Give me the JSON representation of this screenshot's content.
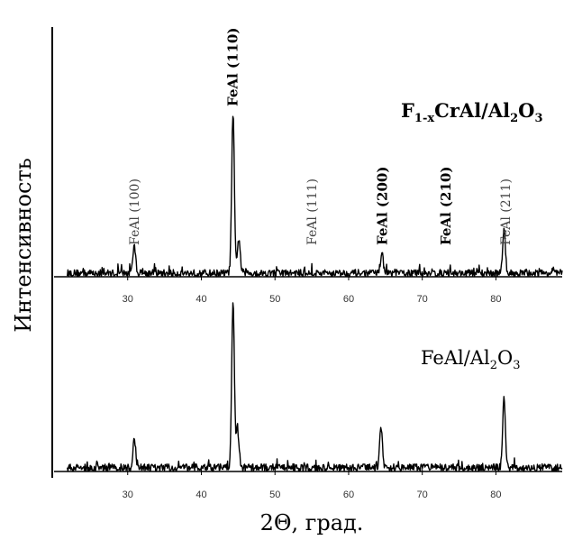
{
  "chart_data": [
    {
      "type": "line",
      "series_label_parts": {
        "main": "F",
        "sub1": "1-x",
        "mid": "CrAl/Al",
        "sub2": "2",
        "tail": "O",
        "sub3": "3"
      },
      "ylabel": "Интенсивность",
      "xlabel": "2Θ, град.",
      "xlim": [
        20,
        89
      ],
      "x_ticks": [
        30,
        40,
        50,
        60,
        70,
        80
      ],
      "peaks": [
        {
          "x": 30.9,
          "intensity": 0.17
        },
        {
          "x": 44.3,
          "intensity": 1.0
        },
        {
          "x": 45.1,
          "intensity": 0.22
        },
        {
          "x": 64.5,
          "intensity": 0.13
        },
        {
          "x": 81.1,
          "intensity": 0.26
        }
      ],
      "peak_labels": [
        {
          "text": "FeAl (100)",
          "x": 30.9,
          "bold": false
        },
        {
          "text": "FeAl (110)",
          "x": 44.3,
          "bold": true
        },
        {
          "text": "FeAl (111)",
          "x": 55.0,
          "bold": false
        },
        {
          "text": "FeAl (200)",
          "x": 64.6,
          "bold": true
        },
        {
          "text": "FeAl (210)",
          "x": 73.2,
          "bold": true
        },
        {
          "text": "FeAl (211)",
          "x": 81.3,
          "bold": false
        }
      ]
    },
    {
      "type": "line",
      "series_label_parts": {
        "main": "FeAl/Al",
        "sub1": "2",
        "tail": "O",
        "sub2": "3"
      },
      "xlim": [
        20,
        89
      ],
      "x_ticks": [
        30,
        40,
        50,
        60,
        70,
        80
      ],
      "peaks": [
        {
          "x": 30.9,
          "intensity": 0.17
        },
        {
          "x": 44.3,
          "intensity": 1.0
        },
        {
          "x": 44.9,
          "intensity": 0.25
        },
        {
          "x": 64.4,
          "intensity": 0.25
        },
        {
          "x": 81.1,
          "intensity": 0.44
        }
      ]
    }
  ]
}
